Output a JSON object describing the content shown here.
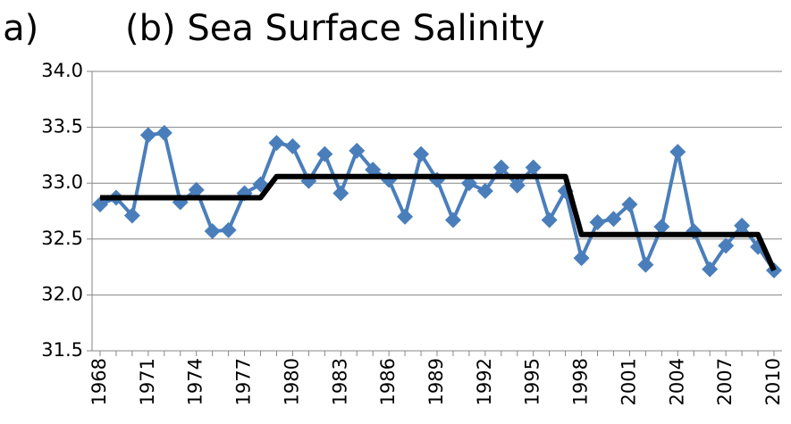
{
  "chart_data": {
    "type": "line",
    "title": "(b) Sea Surface Salinity",
    "annotation": "la)",
    "categories": [
      "1968",
      null,
      null,
      "1971",
      null,
      null,
      "1974",
      null,
      null,
      "1977",
      null,
      null,
      "1980",
      null,
      null,
      "1983",
      null,
      null,
      "1986",
      null,
      null,
      "1989",
      null,
      null,
      "1992",
      null,
      null,
      "1995",
      null,
      null,
      "1998",
      null,
      null,
      "2001",
      null,
      null,
      "2004",
      null,
      null,
      "2007",
      null,
      null,
      "2010"
    ],
    "series": [
      {
        "color": "#4a7ebb",
        "marker": "diamond",
        "values": [
          32.81,
          32.87,
          32.71,
          33.43,
          33.45,
          32.83,
          32.94,
          32.57,
          32.58,
          32.91,
          32.99,
          33.36,
          33.33,
          33.02,
          33.26,
          32.91,
          33.29,
          33.12,
          33.03,
          32.7,
          33.26,
          33.03,
          32.67,
          33.0,
          32.93,
          33.14,
          32.98,
          33.14,
          32.67,
          32.93,
          32.33,
          32.65,
          32.68,
          32.81,
          32.27,
          32.61,
          33.28,
          32.57,
          32.23,
          32.44,
          32.62,
          32.43,
          32.22
        ]
      },
      {
        "color": "#000000",
        "marker": "none",
        "values": [
          32.87,
          32.87,
          32.87,
          32.87,
          32.87,
          32.87,
          32.87,
          32.87,
          32.87,
          32.87,
          32.87,
          33.06,
          33.06,
          33.06,
          33.06,
          33.06,
          33.06,
          33.06,
          33.06,
          33.06,
          33.06,
          33.06,
          33.06,
          33.06,
          33.06,
          33.06,
          33.06,
          33.06,
          33.06,
          33.06,
          32.54,
          32.54,
          32.54,
          32.54,
          32.54,
          32.54,
          32.54,
          32.54,
          32.54,
          32.54,
          32.54,
          32.54,
          32.22
        ]
      }
    ],
    "ylim": [
      31.5,
      34.0
    ],
    "yticks": [
      31.5,
      {
        "value": 32.0,
        "label": "32.0"
      },
      32.5,
      {
        "value": 33.0,
        "label": "33.0"
      },
      33.5,
      {
        "value": 34.0,
        "label": "34.0"
      }
    ],
    "grid": true
  }
}
